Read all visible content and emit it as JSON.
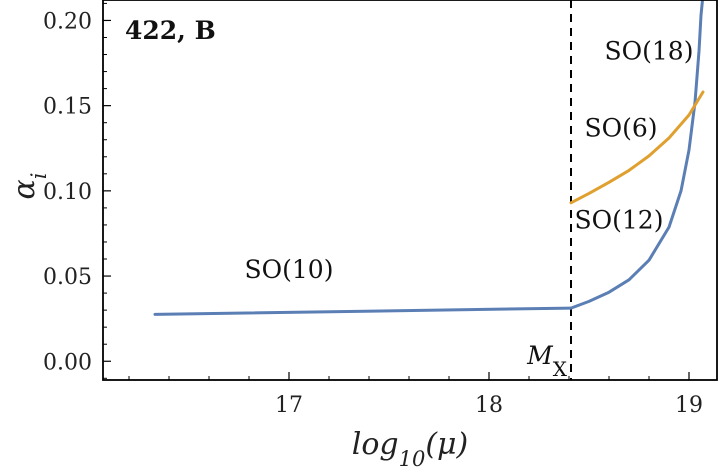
{
  "chart_data": {
    "type": "line",
    "title": "422, B",
    "xlabel": "log10(μ)",
    "ylabel": "αi",
    "xlim": [
      16.07,
      19.14
    ],
    "ylim": [
      -0.011,
      0.212
    ],
    "x_ticks": [
      {
        "value": 17,
        "label": "17"
      },
      {
        "value": 18,
        "label": "18"
      },
      {
        "value": 19,
        "label": "19"
      }
    ],
    "y_ticks": [
      {
        "value": 0.0,
        "label": "0.00"
      },
      {
        "value": 0.05,
        "label": "0.05"
      },
      {
        "value": 0.1,
        "label": "0.10"
      },
      {
        "value": 0.15,
        "label": "0.15"
      },
      {
        "value": 0.2,
        "label": "0.20"
      }
    ],
    "grid": false,
    "colors": {
      "blue": "#5b7fb5",
      "orange": "#e0a030",
      "axis": "#000000"
    },
    "vertical_marker": {
      "x": 18.41,
      "label": "M",
      "label_sub": "X",
      "style": "dashed"
    },
    "series": [
      {
        "color": "#5b7fb5",
        "x": [
          16.33,
          18.41
        ],
        "y": [
          0.0275,
          0.0312
        ]
      },
      {
        "color": "#5b7fb5",
        "x": [
          18.41,
          18.5,
          18.6,
          18.7,
          18.8,
          18.9,
          18.96,
          19.0,
          19.03,
          19.05,
          19.06,
          19.07
        ],
        "y": [
          0.0312,
          0.0351,
          0.0405,
          0.0478,
          0.0593,
          0.0787,
          0.1,
          0.124,
          0.152,
          0.182,
          0.203,
          0.215
        ]
      },
      {
        "color": "#e0a030",
        "x": [
          18.41,
          18.5,
          18.6,
          18.7,
          18.8,
          18.9,
          19.0,
          19.07
        ],
        "y": [
          0.093,
          0.0985,
          0.105,
          0.112,
          0.1205,
          0.131,
          0.1445,
          0.158
        ]
      }
    ],
    "annotations": [
      {
        "text": "SO(10)",
        "x": 17.0,
        "y": 0.049
      },
      {
        "text": "SO(18)",
        "x": 18.8,
        "y": 0.177
      },
      {
        "text": "SO(6)",
        "x": 18.66,
        "y": 0.132
      },
      {
        "text": "SO(12)",
        "x": 18.65,
        "y": 0.078
      }
    ]
  }
}
